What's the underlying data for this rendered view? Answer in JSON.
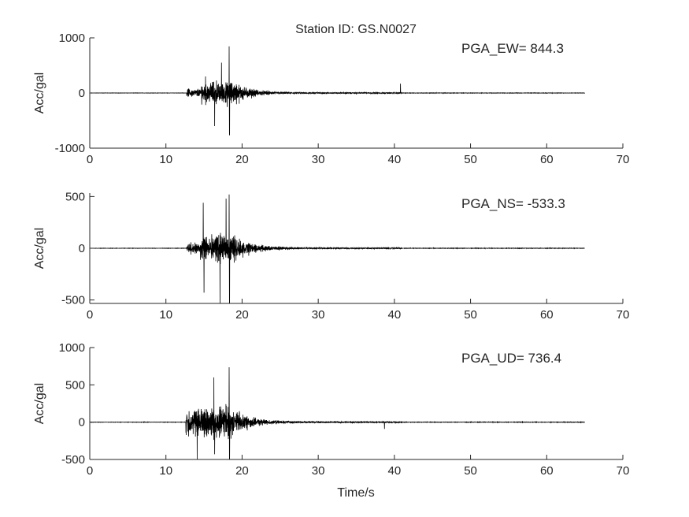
{
  "chart_data": [
    {
      "type": "line",
      "title": "Station ID: GS.N0027",
      "xlabel": "",
      "ylabel": "Acc/gal",
      "xlim": [
        0,
        70
      ],
      "ylim": [
        -1000,
        1000
      ],
      "xticks": [
        0,
        10,
        20,
        30,
        40,
        50,
        60,
        70
      ],
      "yticks": [
        -1000,
        0,
        1000
      ],
      "annotation": "PGA_EW= 844.3",
      "pga": 844.3,
      "record_end": 65,
      "onset": 12.7,
      "peaks": [
        [
          15.2,
          300
        ],
        [
          16.4,
          -600
        ],
        [
          17.3,
          550
        ],
        [
          18.3,
          844.3
        ],
        [
          18.35,
          -760
        ],
        [
          40.8,
          170
        ]
      ],
      "color": "#000000"
    },
    {
      "type": "line",
      "title": "",
      "xlabel": "",
      "ylabel": "Acc/gal",
      "xlim": [
        0,
        70
      ],
      "ylim": [
        -533.3,
        533.3
      ],
      "xticks": [
        0,
        10,
        20,
        30,
        40,
        50,
        60,
        70
      ],
      "yticks": [
        -500,
        0,
        500
      ],
      "annotation": "PGA_NS= -533.3",
      "pga": -533.3,
      "record_end": 65,
      "onset": 12.7,
      "peaks": [
        [
          14.9,
          440
        ],
        [
          15.0,
          -430
        ],
        [
          17.1,
          -533.3
        ],
        [
          17.9,
          480
        ],
        [
          18.3,
          520
        ],
        [
          18.35,
          -533.3
        ]
      ],
      "color": "#000000"
    },
    {
      "type": "line",
      "title": "",
      "xlabel": "Time/s",
      "ylabel": "Acc/gal",
      "xlim": [
        0,
        70
      ],
      "ylim": [
        -500,
        1000
      ],
      "xticks": [
        0,
        10,
        20,
        30,
        40,
        50,
        60,
        70
      ],
      "yticks": [
        -500,
        0,
        500,
        1000
      ],
      "annotation": "PGA_UD= 736.4",
      "pga": 736.4,
      "record_end": 65,
      "onset": 12.6,
      "peaks": [
        [
          14.1,
          -500
        ],
        [
          16.3,
          600
        ],
        [
          16.4,
          -430
        ],
        [
          18.3,
          736.4
        ],
        [
          18.35,
          -500
        ],
        [
          38.7,
          -90
        ]
      ],
      "color": "#000000"
    }
  ]
}
